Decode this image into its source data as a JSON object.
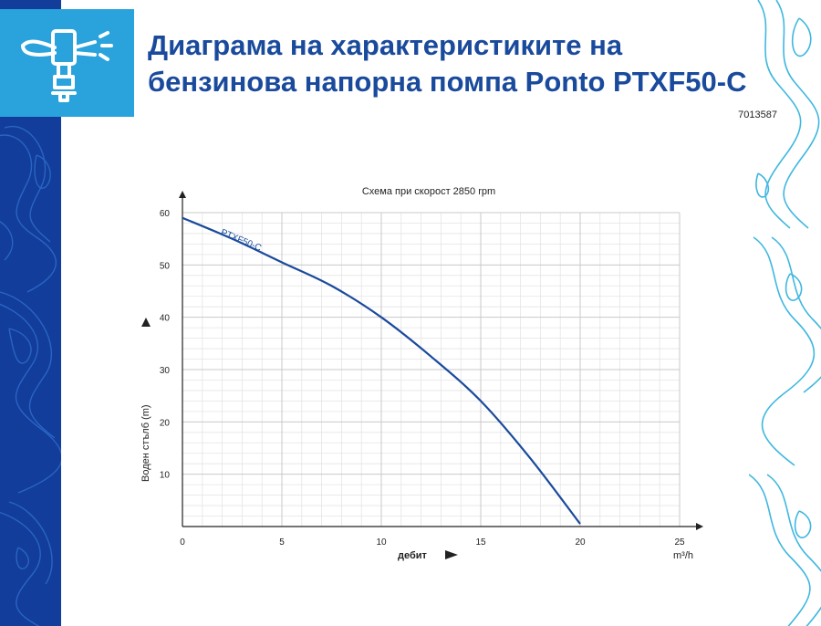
{
  "header": {
    "title_line1": "Диаграма на характеристиките на",
    "title_line2": "бензинова напорна помпа Ponto PTXF50-C",
    "product_code": "7013587",
    "icon": "sprinkler-icon"
  },
  "colors": {
    "left_band": "#123d9a",
    "icon_box": "#2aa3dd",
    "title": "#1a4a9c",
    "curve": "#1a4a9c",
    "right_pattern": "#3fb7e0"
  },
  "chart_data": {
    "type": "line",
    "title": "Схема при скорост 2850 rpm",
    "xlabel": "дебит",
    "xunit": "m³/h",
    "ylabel": "Воден стълб (m)",
    "xlim": [
      0,
      25
    ],
    "ylim": [
      0,
      60
    ],
    "xticks": [
      0,
      5,
      10,
      15,
      20,
      25
    ],
    "yticks": [
      10,
      20,
      30,
      40,
      50,
      60
    ],
    "grid": true,
    "series": [
      {
        "name": "PTXF50-C",
        "x": [
          0,
          2.5,
          5,
          7.5,
          10,
          12.5,
          15,
          17.5,
          20
        ],
        "y": [
          59,
          55,
          50.5,
          46,
          40,
          32.5,
          24,
          13,
          0.5
        ]
      }
    ]
  }
}
